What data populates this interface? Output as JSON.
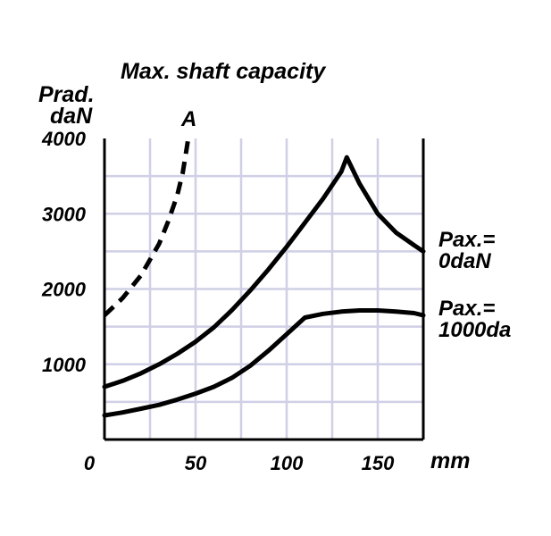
{
  "chart_data": {
    "type": "line",
    "title": "Max. shaft capacity",
    "ylabel": [
      "Prad.",
      "daN"
    ],
    "xlabel": "mm",
    "xlim": [
      0,
      175
    ],
    "ylim": [
      0,
      4000
    ],
    "x_ticks": [
      "0",
      "50",
      "100",
      "150"
    ],
    "y_ticks": [
      "1000",
      "2000",
      "3000",
      "4000"
    ],
    "grid": true,
    "series": [
      {
        "name": "Pax.= 0daN",
        "label_lines": [
          "Pax.=",
          "0daN"
        ],
        "style": "solid",
        "x": [
          0,
          10,
          20,
          30,
          40,
          50,
          60,
          70,
          80,
          90,
          100,
          110,
          120,
          130,
          133,
          140,
          150,
          160,
          170,
          175
        ],
        "y": [
          700,
          780,
          880,
          1000,
          1140,
          1300,
          1490,
          1720,
          1980,
          2260,
          2560,
          2880,
          3200,
          3560,
          3750,
          3400,
          3000,
          2750,
          2580,
          2500
        ]
      },
      {
        "name": "Pax.= 1000da",
        "label_lines": [
          "Pax.=",
          "1000da"
        ],
        "style": "solid",
        "x": [
          0,
          10,
          20,
          30,
          40,
          50,
          60,
          70,
          80,
          90,
          100,
          110,
          120,
          130,
          140,
          150,
          160,
          170,
          175
        ],
        "y": [
          320,
          360,
          410,
          460,
          530,
          610,
          700,
          820,
          980,
          1180,
          1400,
          1620,
          1670,
          1700,
          1715,
          1715,
          1700,
          1680,
          1650
        ]
      },
      {
        "name": "A",
        "label_lines": [
          "A"
        ],
        "style": "dashed",
        "x": [
          0,
          10,
          20,
          30,
          35,
          40,
          43,
          45,
          46
        ],
        "y": [
          1650,
          1880,
          2180,
          2600,
          2900,
          3250,
          3550,
          3850,
          4000
        ]
      }
    ]
  }
}
